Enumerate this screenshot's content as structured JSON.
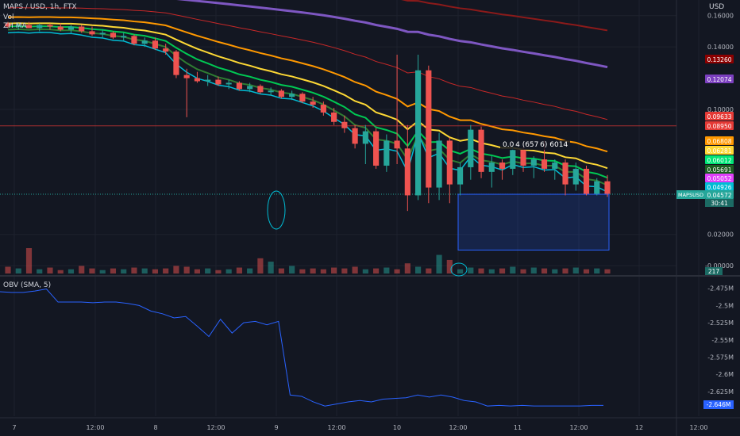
{
  "header": {
    "symbol": "MAPS / USD, 1h, FTX",
    "vol_label": "Vol",
    "indicator_label": "ZH MA",
    "currency": "USD"
  },
  "hover_label": "0.0 4 (657 6) 6014",
  "obv_label": "OBV (SMA, 5)",
  "colors": {
    "background": "#131722",
    "up": "#26a69a",
    "down": "#ef5350",
    "grid": "#1e222d",
    "obv": "#2962ff"
  },
  "chart_data": [
    {
      "type": "candlestick",
      "title": "MAPS / USD, 1h, FTX",
      "ylim": [
        -0.005,
        0.17
      ],
      "y_ticks": [
        "0.16000",
        "0.14000",
        "0.10000",
        "0.02000",
        "-0.00000"
      ],
      "x_ticks": [
        "7",
        "12:00",
        "8",
        "12:00",
        "9",
        "12:00",
        "10",
        "12:00",
        "11",
        "12:00",
        "12",
        "12:00"
      ],
      "ohlc": [
        [
          0.155,
          0.156,
          0.152,
          0.153
        ],
        [
          0.153,
          0.155,
          0.151,
          0.154
        ],
        [
          0.154,
          0.156,
          0.152,
          0.152
        ],
        [
          0.152,
          0.155,
          0.15,
          0.154
        ],
        [
          0.154,
          0.155,
          0.151,
          0.153
        ],
        [
          0.153,
          0.155,
          0.15,
          0.151
        ],
        [
          0.151,
          0.154,
          0.149,
          0.153
        ],
        [
          0.153,
          0.154,
          0.149,
          0.15
        ],
        [
          0.15,
          0.153,
          0.147,
          0.148
        ],
        [
          0.148,
          0.151,
          0.146,
          0.149
        ],
        [
          0.149,
          0.15,
          0.145,
          0.146
        ],
        [
          0.146,
          0.149,
          0.144,
          0.147
        ],
        [
          0.147,
          0.148,
          0.141,
          0.142
        ],
        [
          0.142,
          0.146,
          0.14,
          0.144
        ],
        [
          0.144,
          0.146,
          0.138,
          0.139
        ],
        [
          0.139,
          0.142,
          0.135,
          0.137
        ],
        [
          0.137,
          0.138,
          0.12,
          0.122
        ],
        [
          0.122,
          0.126,
          0.095,
          0.12
        ],
        [
          0.12,
          0.124,
          0.117,
          0.118
        ],
        [
          0.118,
          0.122,
          0.115,
          0.119
        ],
        [
          0.119,
          0.121,
          0.115,
          0.116
        ],
        [
          0.116,
          0.119,
          0.113,
          0.117
        ],
        [
          0.117,
          0.118,
          0.112,
          0.113
        ],
        [
          0.113,
          0.117,
          0.111,
          0.115
        ],
        [
          0.115,
          0.116,
          0.11,
          0.111
        ],
        [
          0.111,
          0.114,
          0.109,
          0.112
        ],
        [
          0.112,
          0.113,
          0.107,
          0.108
        ],
        [
          0.108,
          0.112,
          0.106,
          0.11
        ],
        [
          0.11,
          0.111,
          0.104,
          0.105
        ],
        [
          0.105,
          0.108,
          0.101,
          0.103
        ],
        [
          0.103,
          0.105,
          0.096,
          0.098
        ],
        [
          0.098,
          0.101,
          0.09,
          0.092
        ],
        [
          0.092,
          0.096,
          0.085,
          0.088
        ],
        [
          0.088,
          0.09,
          0.075,
          0.078
        ],
        [
          0.078,
          0.09,
          0.065,
          0.086
        ],
        [
          0.086,
          0.088,
          0.062,
          0.064
        ],
        [
          0.064,
          0.084,
          0.06,
          0.08
        ],
        [
          0.08,
          0.135,
          0.065,
          0.075
        ],
        [
          0.075,
          0.09,
          0.035,
          0.045
        ],
        [
          0.045,
          0.135,
          0.042,
          0.125
        ],
        [
          0.125,
          0.128,
          0.04,
          0.05
        ],
        [
          0.05,
          0.085,
          0.042,
          0.08
        ],
        [
          0.08,
          0.082,
          0.04,
          0.052
        ],
        [
          0.052,
          0.066,
          0.045,
          0.063
        ],
        [
          0.063,
          0.09,
          0.055,
          0.087
        ],
        [
          0.087,
          0.089,
          0.056,
          0.06
        ],
        [
          0.06,
          0.07,
          0.05,
          0.066
        ],
        [
          0.066,
          0.068,
          0.055,
          0.062
        ],
        [
          0.062,
          0.076,
          0.058,
          0.074
        ],
        [
          0.074,
          0.076,
          0.06,
          0.064
        ],
        [
          0.064,
          0.07,
          0.056,
          0.068
        ],
        [
          0.068,
          0.08,
          0.06,
          0.062
        ],
        [
          0.062,
          0.068,
          0.055,
          0.066
        ],
        [
          0.066,
          0.068,
          0.045,
          0.052
        ],
        [
          0.052,
          0.066,
          0.048,
          0.062
        ],
        [
          0.062,
          0.064,
          0.045,
          0.046
        ],
        [
          0.046,
          0.056,
          0.045,
          0.054
        ],
        [
          0.054,
          0.058,
          0.044,
          0.046
        ]
      ],
      "volume": [
        8,
        6,
        30,
        5,
        7,
        4,
        5,
        9,
        6,
        4,
        6,
        5,
        7,
        6,
        5,
        6,
        9,
        8,
        5,
        6,
        4,
        5,
        7,
        6,
        18,
        14,
        6,
        9,
        5,
        6,
        5,
        7,
        6,
        8,
        5,
        6,
        7,
        5,
        12,
        8,
        6,
        22,
        16,
        5,
        7,
        6,
        5,
        6,
        8,
        5,
        7,
        6,
        5,
        6,
        7,
        5,
        6,
        5
      ],
      "current_price": "0.04572",
      "price_labels": [
        {
          "value": "0.13260",
          "price": 0.1326,
          "color": "#8b0000"
        },
        {
          "value": "0.12074",
          "price": 0.1207,
          "color": "#7b3fbf"
        },
        {
          "value": "0.09633",
          "price": 0.0963,
          "color": "#e53935"
        },
        {
          "value": "0.08950",
          "price": 0.0895,
          "color": "#e53935"
        },
        {
          "value": "0.06808",
          "price": 0.0681,
          "color": "#ff9800"
        },
        {
          "value": "0.06281",
          "price": 0.0628,
          "color": "#fdd835"
        },
        {
          "value": "0.06012",
          "price": 0.0601,
          "color": "#00e676"
        },
        {
          "value": "0.05691",
          "price": 0.0569,
          "color": "#1b5e20"
        },
        {
          "value": "0.05052",
          "price": 0.0505,
          "color": "#e040fb"
        },
        {
          "value": "0.04926",
          "price": 0.0493,
          "color": "#00bcd4"
        },
        {
          "value": "0.04572",
          "price": 0.0457,
          "color": "#26a69a"
        }
      ],
      "symbol_tag": "MAPSUSD",
      "countdown": "30:41",
      "volume_value": "217"
    },
    {
      "type": "line",
      "title": "OBV (SMA, 5)",
      "ylim": [
        -2.655,
        -2.465
      ],
      "y_ticks": [
        "-2.475M",
        "-2.5M",
        "-2.525M",
        "-2.55M",
        "-2.575M",
        "-2.6M",
        "-2.625M"
      ],
      "series": [
        {
          "values": [
            -2.48,
            -2.481,
            -2.481,
            -2.479,
            -2.476,
            -2.495,
            -2.495,
            -2.495,
            -2.496,
            -2.495,
            -2.495,
            -2.497,
            -2.5,
            -2.508,
            -2.512,
            -2.518,
            -2.516,
            -2.53,
            -2.545,
            -2.52,
            -2.54,
            -2.525,
            -2.523,
            -2.528,
            -2.523,
            -2.63,
            -2.632,
            -2.64,
            -2.646,
            -2.643,
            -2.64,
            -2.638,
            -2.64,
            -2.636,
            -2.635,
            -2.634,
            -2.63,
            -2.633,
            -2.63,
            -2.633,
            -2.638,
            -2.64,
            -2.646,
            -2.645,
            -2.646,
            -2.645,
            -2.646,
            -2.646,
            -2.646,
            -2.646,
            -2.646,
            -2.645,
            -2.645
          ],
          "last": "-2.646M"
        }
      ]
    }
  ]
}
